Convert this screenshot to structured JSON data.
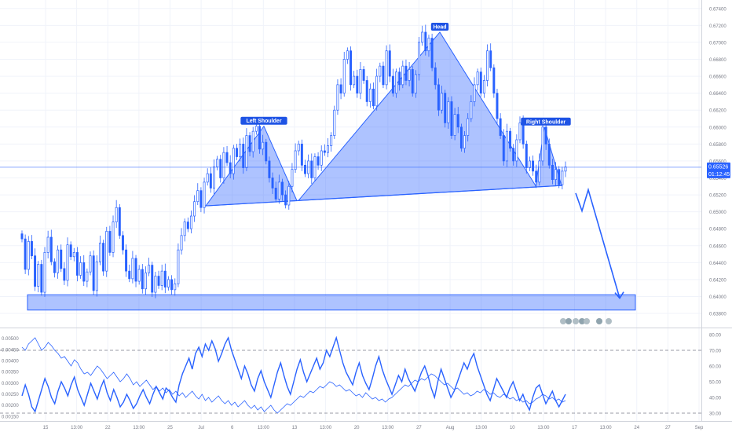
{
  "chart_data": [
    {
      "type": "candlestick",
      "instrument": "",
      "price_axis_ticks": [
        "0.67400",
        "0.67200",
        "0.67000",
        "0.66800",
        "0.66600",
        "0.66400",
        "0.66200",
        "0.66000",
        "0.65800",
        "0.65600",
        "0.65400",
        "0.65200",
        "0.65000",
        "0.64800",
        "0.64600",
        "0.64400",
        "0.64200",
        "0.64000",
        "0.63800"
      ],
      "ylim": [
        0.6368,
        0.675
      ],
      "time_axis_labels": [
        "15",
        "13:00",
        "22",
        "13:00",
        "25",
        "Jul",
        "6",
        "13:00",
        "13",
        "13:00",
        "20",
        "13:00",
        "27",
        "Aug",
        "13:00",
        "10",
        "13:00",
        "17",
        "13:00",
        "24",
        "27",
        "Sep"
      ],
      "current_price": "0.65526",
      "countdown": "01:12:45",
      "last_price_value": 0.65526,
      "pattern_annotations": [
        {
          "label": "Left Shoulder",
          "price": 0.6601
        },
        {
          "label": "Head",
          "price": 0.6712
        },
        {
          "label": "Right Shoulder",
          "price": 0.66
        }
      ],
      "neckline": {
        "start_price": 0.6507,
        "end_price": 0.6531
      },
      "support_zone": {
        "top_price": 0.6402,
        "bottom_price": 0.6384
      },
      "projection_path_prices": [
        0.6522,
        0.6501,
        0.6526,
        0.6398
      ],
      "series": [
        {
          "type": "candlestick",
          "color_up": "#2962ff",
          "color_down": "#2962ff",
          "close": [
            0.6468,
            0.6432,
            0.6465,
            0.6448,
            0.6412,
            0.6438,
            0.6405,
            0.6452,
            0.647,
            0.6441,
            0.6428,
            0.6455,
            0.6433,
            0.6419,
            0.6461,
            0.6447,
            0.6452,
            0.6425,
            0.644,
            0.6418,
            0.6429,
            0.6448,
            0.6407,
            0.6441,
            0.6463,
            0.643,
            0.6477,
            0.6452,
            0.6488,
            0.6505,
            0.6472,
            0.6455,
            0.643,
            0.6421,
            0.6445,
            0.6418,
            0.6432,
            0.6409,
            0.6428,
            0.6437,
            0.6405,
            0.6424,
            0.6413,
            0.643,
            0.6411,
            0.642,
            0.6408,
            0.6415,
            0.6455,
            0.6472,
            0.6488,
            0.648,
            0.6495,
            0.6512,
            0.6525,
            0.6505,
            0.6535,
            0.6545,
            0.6528,
            0.6553,
            0.6562,
            0.654,
            0.657,
            0.6558,
            0.6545,
            0.6575,
            0.6565,
            0.658,
            0.6552,
            0.659,
            0.6571,
            0.6595,
            0.6601,
            0.6574,
            0.6582,
            0.656,
            0.654,
            0.6528,
            0.6515,
            0.6535,
            0.652,
            0.6508,
            0.653,
            0.655,
            0.6572,
            0.658,
            0.6555,
            0.6545,
            0.656,
            0.654,
            0.6565,
            0.6555,
            0.6572,
            0.657,
            0.6578,
            0.659,
            0.662,
            0.665,
            0.664,
            0.668,
            0.669,
            0.665,
            0.666,
            0.664,
            0.6668,
            0.6655,
            0.663,
            0.6645,
            0.6625,
            0.666,
            0.6672,
            0.665,
            0.669,
            0.666,
            0.664,
            0.6665,
            0.665,
            0.6672,
            0.6655,
            0.6668,
            0.664,
            0.6662,
            0.67,
            0.6712,
            0.669,
            0.6705,
            0.667,
            0.665,
            0.662,
            0.664,
            0.6605,
            0.663,
            0.659,
            0.6615,
            0.66,
            0.6575,
            0.659,
            0.661,
            0.663,
            0.665,
            0.6665,
            0.664,
            0.6655,
            0.669,
            0.667,
            0.664,
            0.661,
            0.659,
            0.656,
            0.6595,
            0.6575,
            0.656,
            0.6585,
            0.6605,
            0.658,
            0.6552,
            0.656,
            0.6548,
            0.6535,
            0.656,
            0.66,
            0.658,
            0.6555,
            0.6538,
            0.655,
            0.6532,
            0.6548,
            0.6553
          ]
        }
      ]
    },
    {
      "type": "line",
      "title": "",
      "left_axis_ticks": [
        "0.00500",
        "0.00450",
        "0.00400",
        "0.00350",
        "0.00300",
        "0.00250",
        "0.00200",
        "0.00150"
      ],
      "right_axis_ticks": [
        "80.00",
        "70.00",
        "60.00",
        "50.00",
        "40.00",
        "30.00"
      ],
      "right_ylim": [
        26,
        84
      ],
      "left_ylim": [
        0.00135,
        0.00545
      ],
      "levels": [
        70,
        30
      ],
      "series": [
        {
          "name": "",
          "axis": "right",
          "values": [
            41,
            48,
            42,
            34,
            31,
            38,
            45,
            52,
            47,
            40,
            36,
            44,
            50,
            46,
            41,
            48,
            53,
            45,
            40,
            35,
            42,
            49,
            44,
            39,
            46,
            51,
            43,
            38,
            45,
            40,
            34,
            37,
            42,
            38,
            33,
            36,
            41,
            45,
            40,
            36,
            42,
            47,
            43,
            39,
            46,
            44,
            40,
            37,
            48,
            55,
            60,
            65,
            58,
            68,
            72,
            66,
            74,
            70,
            76,
            71,
            63,
            68,
            74,
            78,
            70,
            64,
            58,
            52,
            60,
            55,
            48,
            44,
            52,
            57,
            50,
            45,
            40,
            48,
            56,
            62,
            54,
            47,
            42,
            50,
            58,
            64,
            56,
            50,
            55,
            60,
            65,
            58,
            62,
            70,
            66,
            72,
            78,
            70,
            62,
            56,
            52,
            48,
            56,
            62,
            54,
            49,
            45,
            52,
            60,
            66,
            58,
            52,
            47,
            42,
            48,
            54,
            50,
            58,
            52,
            48,
            44,
            50,
            56,
            60,
            54,
            46,
            40,
            50,
            58,
            52,
            46,
            40,
            44,
            50,
            56,
            62,
            58,
            64,
            68,
            60,
            54,
            48,
            42,
            38,
            45,
            52,
            48,
            44,
            40,
            46,
            50,
            44,
            38,
            42,
            36,
            32,
            40,
            46,
            48,
            42,
            36,
            40,
            44,
            38,
            34,
            38,
            42
          ]
        },
        {
          "name": "",
          "axis": "right",
          "values": [
            72,
            70,
            74,
            76,
            78,
            74,
            70,
            72,
            75,
            73,
            70,
            68,
            65,
            66,
            63,
            60,
            64,
            62,
            58,
            55,
            56,
            54,
            57,
            60,
            58,
            55,
            52,
            54,
            56,
            53,
            50,
            52,
            55,
            52,
            48,
            50,
            47,
            49,
            51,
            48,
            45,
            47,
            44,
            46,
            43,
            45,
            42,
            44,
            41,
            43,
            40,
            42,
            44,
            41,
            39,
            42,
            38,
            40,
            37,
            39,
            41,
            38,
            36,
            38,
            35,
            37,
            34,
            36,
            38,
            35,
            33,
            35,
            32,
            34,
            31,
            33,
            35,
            32,
            30,
            32,
            34,
            36,
            35,
            37,
            39,
            41,
            40,
            42,
            44,
            43,
            45,
            47,
            46,
            48,
            50,
            49,
            47,
            48,
            46,
            44,
            45,
            43,
            41,
            42,
            40,
            43,
            41,
            39,
            40,
            38,
            39,
            37,
            39,
            40,
            42,
            44,
            46,
            48,
            47,
            49,
            51,
            50,
            52,
            51,
            53,
            55,
            54,
            52,
            50,
            48,
            49,
            47,
            45,
            46,
            44,
            42,
            43,
            41,
            42,
            44,
            43,
            45,
            44,
            42,
            43,
            41,
            40,
            42,
            41,
            39,
            40,
            38,
            39,
            37,
            38,
            36,
            37,
            39,
            40,
            42,
            41,
            39,
            40,
            38,
            39,
            37,
            38
          ]
        }
      ]
    }
  ]
}
